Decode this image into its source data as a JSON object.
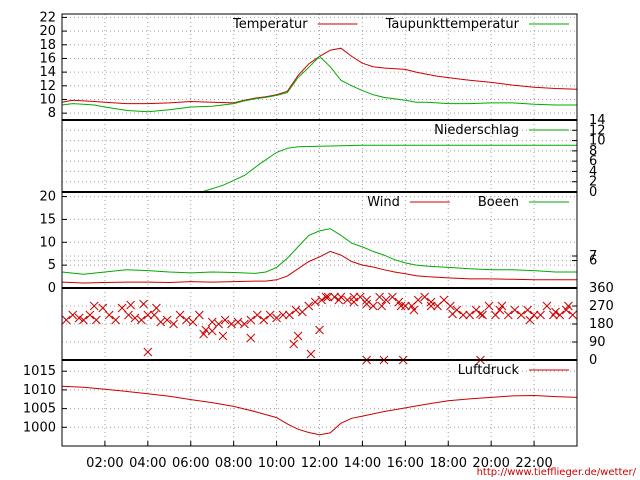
{
  "source_url": "http://www.tiefflieger.de/wetter/",
  "colors": {
    "red": "#cc0000",
    "green": "#00aa00",
    "axis": "#000000",
    "grid": "#a0a0a0"
  },
  "x_axis": {
    "ticks": [
      {
        "h": 2,
        "label": "02:00"
      },
      {
        "h": 4,
        "label": "04:00"
      },
      {
        "h": 6,
        "label": "06:00"
      },
      {
        "h": 8,
        "label": "08:00"
      },
      {
        "h": 10,
        "label": "10:00"
      },
      {
        "h": 12,
        "label": "12:00"
      },
      {
        "h": 14,
        "label": "14:00"
      },
      {
        "h": 16,
        "label": "16:00"
      },
      {
        "h": 18,
        "label": "18:00"
      },
      {
        "h": 20,
        "label": "20:00"
      },
      {
        "h": 22,
        "label": "22:00"
      }
    ],
    "range": [
      0,
      24
    ]
  },
  "chart_data": [
    {
      "type": "line",
      "ylim": [
        7,
        22.5
      ],
      "yticks_left": [
        8,
        10,
        12,
        14,
        16,
        18,
        20,
        22
      ],
      "grid": true,
      "legend": "top-right",
      "x": [
        0,
        0.5,
        1,
        1.5,
        2,
        3,
        4,
        5,
        6,
        7,
        8,
        8.5,
        9,
        9.5,
        10,
        10.5,
        11,
        11.5,
        12,
        12.5,
        13,
        13.5,
        14,
        14.5,
        15,
        16,
        16.5,
        17,
        17.5,
        18,
        18.5,
        19,
        20,
        21,
        22,
        23,
        24
      ],
      "series": [
        {
          "name": "Temperatur",
          "color": "#cc0000",
          "values": [
            9.6,
            9.9,
            9.8,
            9.7,
            9.6,
            9.4,
            9.4,
            9.5,
            9.7,
            9.6,
            9.5,
            9.9,
            10.2,
            10.4,
            10.7,
            11.2,
            13.5,
            15.2,
            16.3,
            17.2,
            17.5,
            16.3,
            15.3,
            14.8,
            14.6,
            14.4,
            14.0,
            13.7,
            13.4,
            13.2,
            13.0,
            12.8,
            12.5,
            12.1,
            11.8,
            11.6,
            11.5
          ]
        },
        {
          "name": "Taupunkttemperatur",
          "color": "#00aa00",
          "values": [
            9.2,
            9.4,
            9.3,
            9.2,
            8.9,
            8.4,
            8.2,
            8.5,
            8.9,
            9.0,
            9.4,
            9.8,
            10.1,
            10.3,
            10.6,
            11.0,
            13.2,
            14.7,
            16.3,
            14.8,
            12.8,
            12.0,
            11.3,
            10.7,
            10.3,
            9.9,
            9.6,
            9.6,
            9.5,
            9.4,
            9.4,
            9.4,
            9.5,
            9.5,
            9.3,
            9.2,
            9.2
          ]
        }
      ]
    },
    {
      "type": "line",
      "ylim": [
        0,
        14
      ],
      "yticks_right": [
        0,
        2,
        4,
        6,
        8,
        10,
        12,
        14
      ],
      "grid": true,
      "legend": "top-right",
      "x": [
        0,
        6.5,
        7.5,
        8.5,
        9.2,
        10,
        10.5,
        11,
        12,
        13,
        14,
        24
      ],
      "series": [
        {
          "name": "Niederschlag",
          "color": "#00aa00",
          "values": [
            0,
            0,
            1.3,
            3.2,
            5.4,
            7.7,
            8.5,
            8.8,
            8.9,
            9.0,
            9.1,
            9.1
          ]
        }
      ]
    },
    {
      "type": "line",
      "ylim": [
        0,
        21
      ],
      "yticks_left": [
        0,
        5,
        10,
        15,
        20
      ],
      "yticks_right": [
        6,
        7
      ],
      "grid": true,
      "legend": "top-right",
      "x": [
        0,
        1,
        2,
        3,
        4,
        5,
        6,
        7,
        8,
        9,
        9.5,
        10,
        10.5,
        11,
        11.5,
        12,
        12.5,
        13,
        13.5,
        14,
        14.5,
        15,
        15.5,
        16,
        16.5,
        17,
        18,
        19,
        20,
        21,
        22,
        23,
        24
      ],
      "series": [
        {
          "name": "Wind",
          "color": "#cc0000",
          "values": [
            1.3,
            1.1,
            1.2,
            1.3,
            1.3,
            1.2,
            1.4,
            1.3,
            1.4,
            1.5,
            1.5,
            1.8,
            2.6,
            4.2,
            5.8,
            6.8,
            8.0,
            7.2,
            5.8,
            5.0,
            4.6,
            4.0,
            3.5,
            3.1,
            2.7,
            2.5,
            2.2,
            2.0,
            2.0,
            1.9,
            1.8,
            1.8,
            1.8
          ]
        },
        {
          "name": "Boeen",
          "color": "#00aa00",
          "values": [
            3.5,
            3.0,
            3.5,
            4.0,
            3.8,
            3.5,
            3.3,
            3.5,
            3.4,
            3.2,
            3.5,
            4.5,
            6.5,
            9.0,
            11.5,
            12.5,
            13.0,
            11.5,
            9.8,
            9.0,
            8.0,
            7.2,
            6.2,
            5.5,
            5.0,
            4.8,
            4.5,
            4.2,
            4.0,
            4.0,
            3.8,
            3.5,
            3.5
          ]
        }
      ]
    },
    {
      "type": "scatter",
      "ylim": [
        0,
        360
      ],
      "yticks_right": [
        0,
        90,
        180,
        270,
        360
      ],
      "grid": true,
      "series": [
        {
          "name": "",
          "color": "#cc0000",
          "marker": "x",
          "x": [
            0.2,
            0.5,
            0.8,
            1.0,
            1.3,
            1.6,
            1.9,
            2.2,
            2.5,
            2.8,
            3.1,
            3.4,
            3.7,
            4.0,
            4.3,
            4.6,
            4.9,
            5.2,
            5.5,
            5.8,
            6.1,
            6.4,
            6.7,
            7.0,
            7.3,
            7.6,
            7.9,
            8.2,
            8.5,
            8.8,
            9.1,
            9.4,
            9.7,
            10.0,
            10.3,
            10.6,
            10.9,
            11.2,
            11.5,
            11.8,
            12.1,
            12.4,
            12.7,
            13.0,
            13.3,
            13.6,
            13.9,
            14.2,
            14.5,
            14.8,
            15.1,
            15.4,
            15.7,
            16.0,
            16.3,
            16.6,
            16.9,
            17.2,
            17.5,
            17.8,
            18.1,
            18.4,
            18.7,
            19.0,
            19.3,
            19.6,
            19.9,
            20.2,
            20.5,
            20.8,
            21.1,
            21.4,
            21.7,
            22.0,
            22.3,
            22.6,
            22.9,
            23.2,
            23.5,
            23.8,
            1.5,
            3.2,
            3.8,
            4.4,
            6.6,
            7.0,
            7.5,
            8.8,
            10.8,
            11.0,
            11.6,
            12.0,
            12.3,
            12.9,
            13.6,
            14.2,
            14.9,
            15.8,
            16.4,
            17.2,
            18.2,
            19.5,
            20.4,
            21.8,
            23.0,
            23.6,
            14.2,
            15.0,
            15.9,
            19.5,
            4.0
          ],
          "y": [
            200,
            225,
            210,
            200,
            225,
            200,
            260,
            225,
            200,
            260,
            225,
            210,
            200,
            225,
            225,
            190,
            200,
            180,
            225,
            200,
            190,
            225,
            150,
            190,
            180,
            200,
            180,
            190,
            180,
            200,
            225,
            200,
            225,
            210,
            225,
            225,
            250,
            240,
            270,
            290,
            300,
            315,
            315,
            315,
            300,
            315,
            315,
            300,
            270,
            315,
            300,
            315,
            290,
            270,
            270,
            300,
            315,
            290,
            270,
            300,
            270,
            250,
            225,
            225,
            250,
            225,
            270,
            225,
            270,
            225,
            250,
            225,
            250,
            225,
            225,
            270,
            225,
            225,
            250,
            225,
            270,
            275,
            280,
            260,
            130,
            145,
            120,
            110,
            80,
            120,
            30,
            150,
            315,
            300,
            290,
            280,
            270,
            270,
            250,
            270,
            230,
            230,
            250,
            200,
            240,
            270,
            0,
            0,
            0,
            0,
            40
          ]
        }
      ]
    },
    {
      "type": "line",
      "ylim": [
        995,
        1018
      ],
      "yticks_left": [
        1000,
        1005,
        1010,
        1015
      ],
      "grid": true,
      "legend": "top-right",
      "x": [
        0,
        1,
        2,
        3,
        4,
        5,
        6,
        7,
        8,
        9,
        10,
        10.5,
        11,
        11.5,
        12,
        12.5,
        13,
        13.5,
        14,
        15,
        16,
        17,
        18,
        19,
        20,
        21,
        22,
        23,
        24
      ],
      "series": [
        {
          "name": "Luftdruck",
          "color": "#cc0000",
          "values": [
            1011,
            1010.7,
            1010.2,
            1009.6,
            1009.0,
            1008.3,
            1007.4,
            1006.6,
            1005.6,
            1004.2,
            1002.6,
            1000.9,
            999.5,
            998.6,
            998.0,
            998.5,
            1001.1,
            1002.4,
            1003.0,
            1004.2,
            1005.2,
            1006.2,
            1007.1,
            1007.6,
            1008.0,
            1008.4,
            1008.5,
            1008.2,
            1008.0
          ]
        }
      ]
    }
  ]
}
